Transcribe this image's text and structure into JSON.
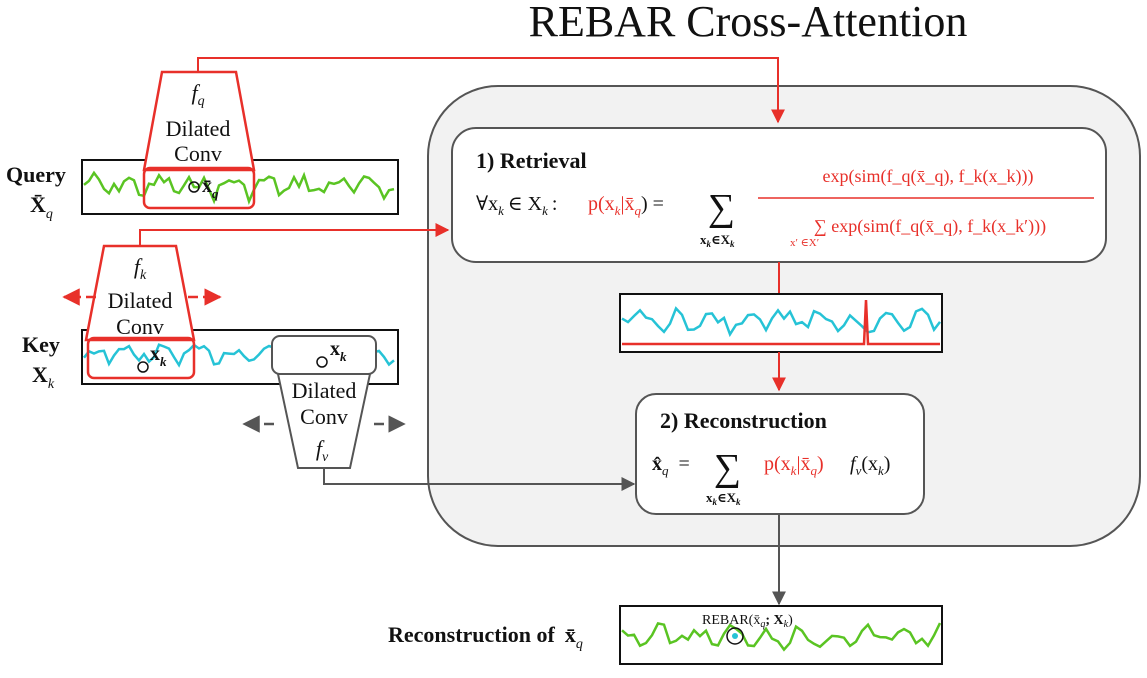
{
  "title": "REBAR Cross-Attention",
  "query": {
    "label": "Query",
    "symbol": "X̄",
    "symbol_sub": "q",
    "window_symbol": "x̄",
    "window_sub": "q"
  },
  "key": {
    "label": "Key",
    "symbol": "X",
    "symbol_sub": "k",
    "window_symbol": "x",
    "window_sub": "k"
  },
  "conv_q": {
    "f": "f",
    "f_sub": "q",
    "line1": "Dilated",
    "line2": "Conv"
  },
  "conv_k": {
    "f": "f",
    "f_sub": "k",
    "line1": "Dilated",
    "line2": "Conv"
  },
  "conv_v": {
    "f": "f",
    "f_sub": "v",
    "line1": "Dilated",
    "line2": "Conv"
  },
  "retrieval": {
    "title": "1) Retrieval",
    "lhs": "∀x",
    "lhs_sub": "k",
    "lhs_rest": "∈ X",
    "lhs_rest_sub": "k",
    "lhs_colon": ":",
    "prob": "p(x",
    "prob_sub": "k",
    "prob_rest": "|x̄",
    "prob_rest_sub": "q",
    "prob_close": ") =",
    "sum": "∑",
    "sum_index": "x",
    "sum_index_sub": "k",
    "sum_index_rest": "∈X",
    "sum_index_rest_sub": "k",
    "numerator": "exp(sim(f_q(x̄_q), f_k(x_k)))",
    "denominator": "∑ exp(sim(f_q(x̄_q), f_k(x_k′)))",
    "den_index": "x′ ∈X′"
  },
  "reconstruction": {
    "title": "2) Reconstruction",
    "lhs": "x̂",
    "lhs_sub": "q",
    "eq": "=",
    "sum": "∑",
    "sum_index": "x",
    "sum_index_sub": "k",
    "sum_index_rest": "∈X",
    "sum_index_rest_sub": "k",
    "prob": "p(x",
    "prob_sub": "k",
    "prob_rest": "|x̄",
    "prob_rest_sub": "q",
    "prob_close": ")",
    "fv": "f",
    "fv_sub": "v",
    "fv_rest": "(x",
    "fv_rest_sub": "k",
    "fv_close": ")"
  },
  "output": {
    "label": "Reconstruction of",
    "symbol": "x̄",
    "symbol_sub": "q",
    "point_label": "REBAR(x̄",
    "point_label_sub": "q",
    "point_label_rest": "; X",
    "point_label_rest_sub": "k",
    "point_label_close": ")"
  },
  "colors": {
    "accent_red": "#e8302a",
    "query_green": "#5ac423",
    "key_cyan": "#26c3d6",
    "panel_fill": "#f2f2f2",
    "arrow_gray": "#555555"
  }
}
